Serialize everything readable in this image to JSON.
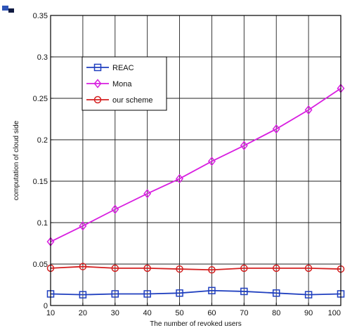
{
  "chart_data": {
    "type": "line",
    "title": "",
    "xlabel": "The number of revoked users",
    "ylabel": "computation of cloud side",
    "x": [
      10,
      20,
      30,
      40,
      50,
      60,
      70,
      80,
      90,
      100
    ],
    "x_tick_labels": [
      "10",
      "20",
      "30",
      "40",
      "50",
      "60",
      "70",
      "80",
      "90",
      "100"
    ],
    "xlim": [
      10,
      100
    ],
    "ylim": [
      0,
      0.35
    ],
    "y_ticks": [
      0,
      0.05,
      0.1,
      0.15,
      0.2,
      0.25,
      0.3,
      0.35
    ],
    "y_tick_labels": [
      "0",
      "0.05",
      "0.1",
      "0.15",
      "0.2",
      "0.25",
      "0.3",
      "0.35"
    ],
    "grid": true,
    "legend_position": "top-left",
    "series": [
      {
        "name": "REAC",
        "color": "#1f3fbf",
        "marker": "square",
        "values": [
          0.014,
          0.013,
          0.014,
          0.014,
          0.015,
          0.018,
          0.017,
          0.015,
          0.013,
          0.014
        ]
      },
      {
        "name": "Mona",
        "color": "#d81ee0",
        "marker": "diamond",
        "values": [
          0.077,
          0.096,
          0.116,
          0.135,
          0.153,
          0.174,
          0.193,
          0.213,
          0.236,
          0.262
        ]
      },
      {
        "name": "our scheme",
        "color": "#d42020",
        "marker": "circle",
        "values": [
          0.045,
          0.047,
          0.045,
          0.045,
          0.044,
          0.043,
          0.045,
          0.045,
          0.045,
          0.044
        ]
      }
    ]
  }
}
